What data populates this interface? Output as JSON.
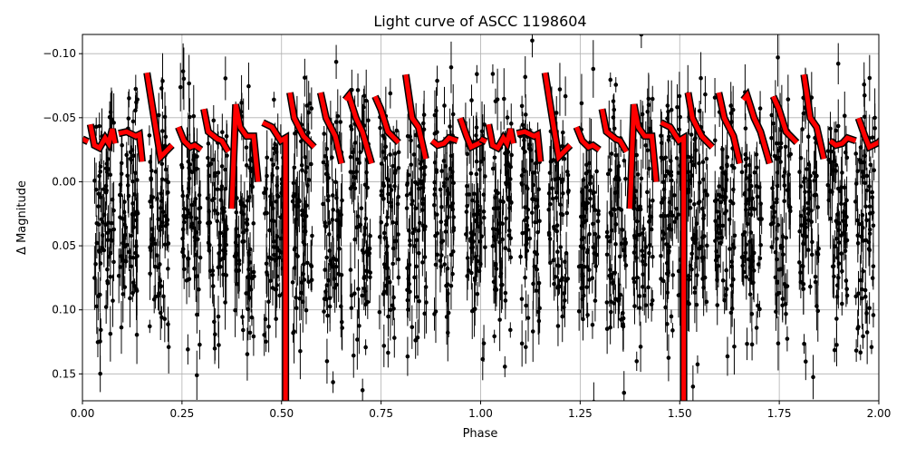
{
  "chart_data": {
    "type": "scatter",
    "title": "Light curve of ASCC 1198604",
    "xlabel": "Phase",
    "ylabel": "Δ Magnitude",
    "xlim": [
      0,
      2
    ],
    "ylim": [
      0.171,
      -0.115
    ],
    "y_inverted": true,
    "grid": true,
    "xticks": [
      0,
      0.25,
      0.5,
      0.75,
      1.0,
      1.25,
      1.5,
      1.75,
      2.0
    ],
    "xtick_labels": [
      "0.00",
      "0.25",
      "0.50",
      "0.75",
      "1.00",
      "1.25",
      "1.50",
      "1.75",
      "2.00"
    ],
    "yticks": [
      -0.1,
      -0.05,
      0.0,
      0.05,
      0.1,
      0.15
    ],
    "ytick_labels": [
      "−0.10",
      "−0.05",
      "0.00",
      "0.05",
      "0.10",
      "0.15"
    ],
    "observations": {
      "color": "#000000",
      "marker": "dot with error bars",
      "cluster_phases": [
        0.055,
        0.116,
        0.193,
        0.271,
        0.339,
        0.407,
        0.48,
        0.553,
        0.628,
        0.698,
        0.771,
        0.839,
        0.908,
        0.987,
        1.055,
        1.124,
        1.196,
        1.272,
        1.34,
        1.408,
        1.477,
        1.545,
        1.613,
        1.681,
        1.754,
        1.824,
        1.897,
        1.966
      ],
      "magnitude_range": [
        -0.11,
        0.17
      ]
    },
    "model": {
      "color": "#ff0000",
      "edge_color": "#000000",
      "period_in_phase": 1,
      "segments": [
        [
          [
            0.0,
            -0.0334
          ],
          [
            0.014,
            -0.0313
          ]
        ],
        [
          [
            0.02,
            -0.0448
          ],
          [
            0.03,
            -0.0285
          ],
          [
            0.043,
            -0.0264
          ],
          [
            0.057,
            -0.0342
          ],
          [
            0.066,
            -0.0299
          ],
          [
            0.075,
            -0.0412
          ],
          [
            0.082,
            -0.0299
          ]
        ],
        [
          [
            0.091,
            -0.0377
          ],
          [
            0.111,
            -0.0391
          ],
          [
            0.134,
            -0.0356
          ],
          [
            0.143,
            -0.037
          ],
          [
            0.15,
            -0.0157
          ]
        ],
        [
          [
            0.162,
            -0.0851
          ],
          [
            0.18,
            -0.0497
          ],
          [
            0.196,
            -0.0193
          ],
          [
            0.207,
            -0.0228
          ],
          [
            0.225,
            -0.0285
          ]
        ],
        [
          [
            0.241,
            -0.0427
          ],
          [
            0.255,
            -0.032
          ],
          [
            0.271,
            -0.0271
          ],
          [
            0.282,
            -0.0285
          ],
          [
            0.298,
            -0.025
          ]
        ],
        [
          [
            0.305,
            -0.0568
          ],
          [
            0.316,
            -0.0391
          ],
          [
            0.339,
            -0.0334
          ],
          [
            0.35,
            -0.032
          ],
          [
            0.366,
            -0.0235
          ]
        ],
        [
          [
            0.375,
            0.021
          ],
          [
            0.385,
            -0.0604
          ],
          [
            0.396,
            -0.0427
          ],
          [
            0.412,
            -0.0356
          ],
          [
            0.43,
            -0.0356
          ],
          [
            0.441,
            0.0
          ]
        ],
        [
          [
            0.453,
            -0.0462
          ],
          [
            0.476,
            -0.0427
          ],
          [
            0.498,
            -0.032
          ],
          [
            0.51,
            -0.0342
          ],
          [
            0.51,
            0.171
          ]
        ],
        [
          [
            0.521,
            -0.0696
          ],
          [
            0.532,
            -0.0497
          ],
          [
            0.555,
            -0.0356
          ],
          [
            0.582,
            -0.0271
          ]
        ],
        [
          [
            0.598,
            -0.0696
          ],
          [
            0.612,
            -0.0497
          ],
          [
            0.635,
            -0.0356
          ],
          [
            0.651,
            -0.0143
          ]
        ],
        [
          [
            0.66,
            -0.0639
          ],
          [
            0.669,
            -0.0674
          ],
          [
            0.687,
            -0.0497
          ],
          [
            0.703,
            -0.0391
          ],
          [
            0.726,
            -0.0143
          ]
        ],
        [
          [
            0.735,
            -0.0667
          ],
          [
            0.749,
            -0.0568
          ],
          [
            0.767,
            -0.0391
          ],
          [
            0.794,
            -0.0306
          ]
        ],
        [
          [
            0.812,
            -0.0837
          ],
          [
            0.828,
            -0.0497
          ],
          [
            0.844,
            -0.0427
          ],
          [
            0.862,
            -0.0179
          ]
        ],
        [
          [
            0.878,
            -0.032
          ],
          [
            0.892,
            -0.0285
          ],
          [
            0.908,
            -0.0299
          ],
          [
            0.921,
            -0.0342
          ],
          [
            0.942,
            -0.032
          ]
        ],
        [
          [
            0.949,
            -0.0497
          ],
          [
            0.965,
            -0.0356
          ],
          [
            0.976,
            -0.0271
          ],
          [
            0.999,
            -0.0306
          ],
          [
            1.01,
            -0.0342
          ]
        ]
      ]
    }
  }
}
